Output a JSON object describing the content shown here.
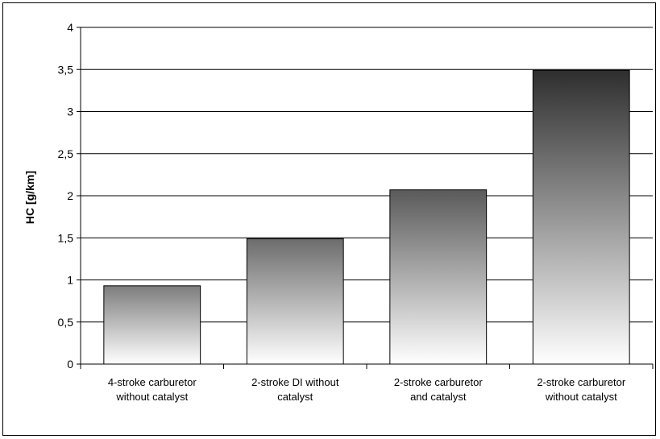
{
  "chart_data": {
    "type": "bar",
    "title": "",
    "xlabel": "",
    "ylabel": "HC [g/km]",
    "categories": [
      [
        "4-stroke carburetor",
        "without catalyst"
      ],
      [
        "2-stroke DI without",
        "catalyst"
      ],
      [
        "2-stroke carburetor",
        "and catalyst"
      ],
      [
        "2-stroke carburetor",
        "without catalyst"
      ]
    ],
    "values": [
      0.93,
      1.49,
      2.07,
      3.49
    ],
    "ylim": [
      0,
      4
    ],
    "yticks": [
      "0",
      "0,5",
      "1",
      "1,5",
      "2",
      "2,5",
      "3",
      "3,5",
      "4"
    ],
    "ytick_values": [
      0,
      0.5,
      1,
      1.5,
      2,
      2.5,
      3,
      3.5,
      4
    ],
    "grid": true,
    "legend": "none",
    "bar_gradient": {
      "light": "#ffffff",
      "dark_min": "#9a9a9a",
      "dark_max": "#2e2e2e"
    },
    "axis_color": "#000000",
    "grid_color": "#000000"
  }
}
